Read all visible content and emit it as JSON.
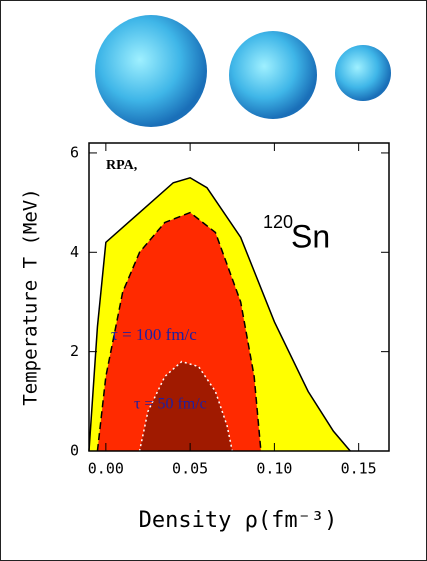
{
  "chart_data": {
    "type": "area",
    "x_label": "Density ρ(fm⁻³)",
    "y_label": "Temperature T (MeV)",
    "annotations": [
      "RPA,",
      "120",
      "Sn",
      "τ = 100 fm/c",
      "τ = 50 fm/c"
    ],
    "xlim": [
      -0.01,
      0.168
    ],
    "ylim": [
      0,
      6.2
    ],
    "xticks": [
      {
        "value": 0,
        "label": "0.00"
      },
      0.05,
      {
        "value": 0.1,
        "label": "0.10"
      },
      0.15
    ],
    "yticks": [
      0,
      2,
      4,
      6
    ],
    "series": [
      {
        "color": "#ffff00",
        "outline": "solid",
        "x": [
          -0.01,
          -0.005,
          0.0,
          0.02,
          0.04,
          0.05,
          0.06,
          0.08,
          0.1,
          0.12,
          0.135,
          0.145
        ],
        "values": [
          0,
          2.5,
          4.2,
          4.8,
          5.4,
          5.5,
          5.3,
          4.3,
          2.6,
          1.2,
          0.4,
          0
        ]
      },
      {
        "color": "#ff2a00",
        "outline": "dashed",
        "x": [
          -0.005,
          0.0,
          0.01,
          0.02,
          0.035,
          0.05,
          0.065,
          0.08,
          0.088,
          0.092
        ],
        "values": [
          0,
          1.5,
          3.2,
          4.0,
          4.6,
          4.8,
          4.4,
          3.0,
          1.5,
          0
        ]
      },
      {
        "color": "#a01a00",
        "outline": "dotted",
        "x": [
          0.02,
          0.025,
          0.035,
          0.045,
          0.055,
          0.065,
          0.072,
          0.075
        ],
        "values": [
          0,
          0.8,
          1.5,
          1.8,
          1.7,
          1.2,
          0.5,
          0
        ]
      }
    ]
  }
}
